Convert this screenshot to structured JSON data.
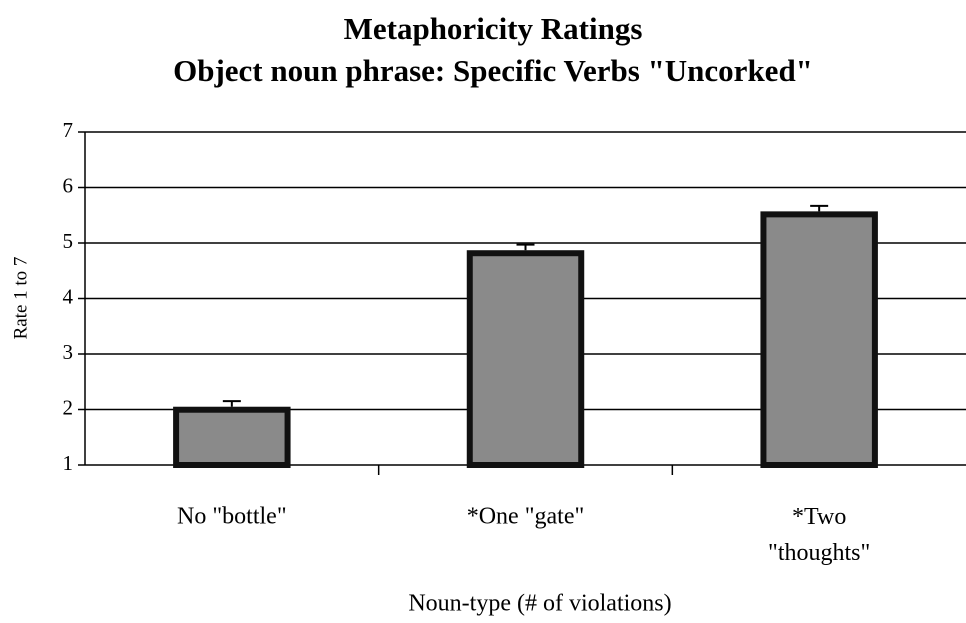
{
  "chart_data": {
    "type": "bar",
    "title": "Metaphoricity Ratings",
    "subtitle": "Object noun phrase:  Specific Verbs \"Uncorked\"",
    "x_label": "Noun-type (# of violations)",
    "y_label": "Rate 1 to 7",
    "categories": [
      "No \"bottle\"",
      "*One \"gate\"",
      "*Two \"thoughts\""
    ],
    "values": [
      2.05,
      4.87,
      5.57
    ],
    "errors": [
      0.1,
      0.1,
      0.1
    ],
    "color": "#8a8a8a",
    "ylim": [
      1,
      7
    ],
    "yticks": [
      1,
      2,
      3,
      4,
      5,
      6,
      7
    ],
    "grid": true
  }
}
